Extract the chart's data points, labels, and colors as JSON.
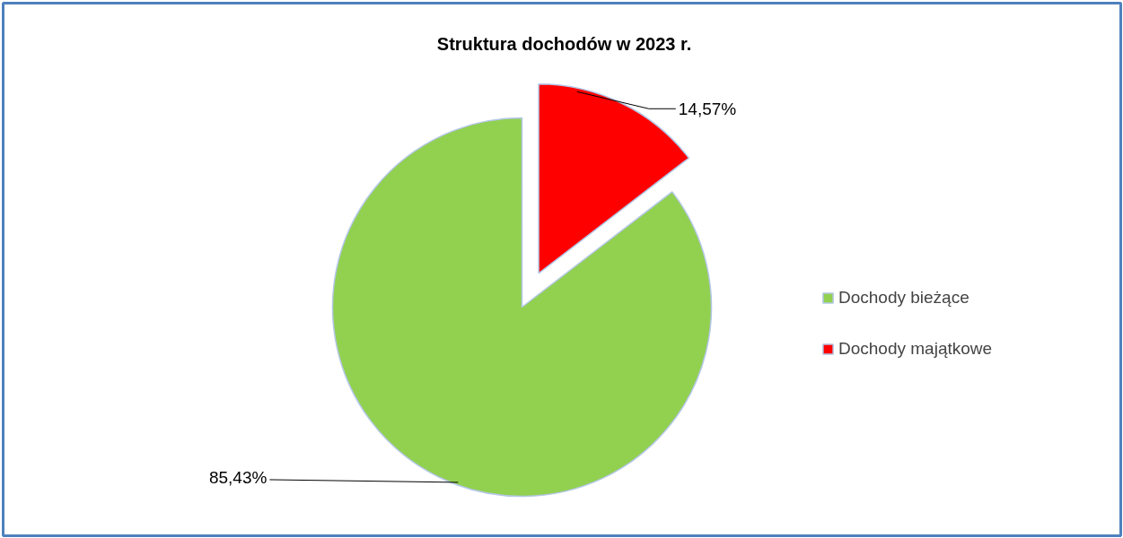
{
  "chart_data": {
    "type": "pie",
    "title": "Struktura dochodów w 2023 r.",
    "categories": [
      "Dochody bieżące",
      "Dochody majątkowe"
    ],
    "values": [
      85.43,
      14.57
    ],
    "colors": [
      "#92d050",
      "#ff0000"
    ],
    "value_labels": [
      "85,43%",
      "14,57%"
    ],
    "legend": "right"
  }
}
